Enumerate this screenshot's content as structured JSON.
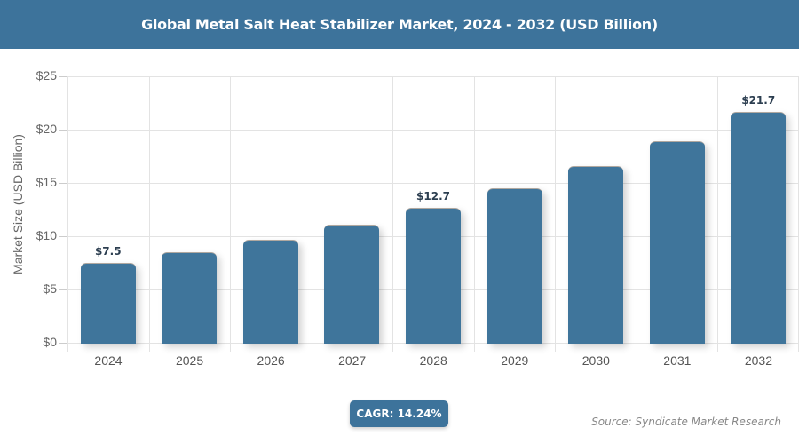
{
  "header": {
    "title": "Global Metal Salt Heat Stabilizer Market, 2024 - 2032 (USD Billion)"
  },
  "footer": {
    "cagr": "CAGR: 14.24%",
    "source": "Source: Syndicate Market Research"
  },
  "axis": {
    "ylabel": "Market Size (USD Billion)",
    "yticks": [
      "$0",
      "$5",
      "$10",
      "$15",
      "$20",
      "$25"
    ]
  },
  "colors": {
    "bar": "#3f759b",
    "header": "#3d739b"
  },
  "chart_data": {
    "type": "bar",
    "title": "Global Metal Salt Heat Stabilizer Market, 2024 - 2032 (USD Billion)",
    "xlabel": "",
    "ylabel": "Market Size (USD Billion)",
    "categories": [
      "2024",
      "2025",
      "2026",
      "2027",
      "2028",
      "2029",
      "2030",
      "2031",
      "2032"
    ],
    "values": [
      7.5,
      8.5,
      9.7,
      11.1,
      12.7,
      14.5,
      16.6,
      18.9,
      21.7
    ],
    "data_labels": {
      "0": "$7.5",
      "4": "$12.7",
      "8": "$21.7"
    },
    "ylim": [
      0,
      25
    ],
    "yticks": [
      0,
      5,
      10,
      15,
      20,
      25
    ],
    "grid": true,
    "legend": null,
    "annotations": [
      "CAGR: 14.24%",
      "Source: Syndicate Market Research"
    ]
  }
}
